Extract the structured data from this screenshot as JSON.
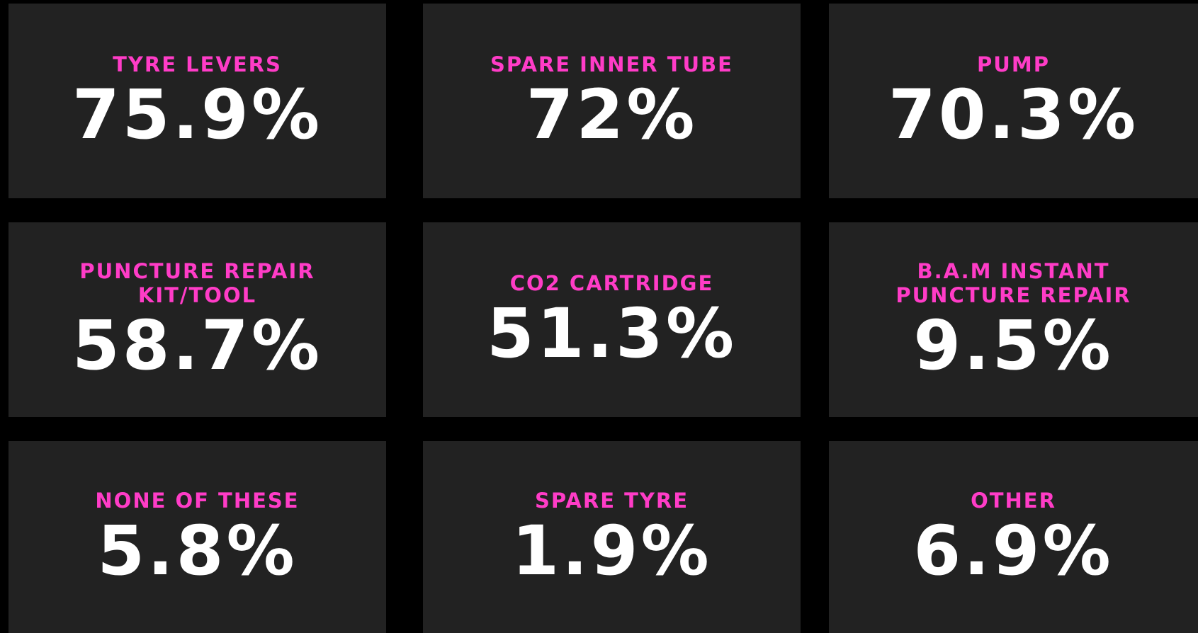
{
  "cards": [
    {
      "label": "TYRE LEVERS",
      "value": "75.9%"
    },
    {
      "label": "SPARE INNER TUBE",
      "value": "72%"
    },
    {
      "label": "PUMP",
      "value": "70.3%"
    },
    {
      "label": "PUNCTURE REPAIR KIT/TOOL",
      "value": "58.7%"
    },
    {
      "label": "CO2 CARTRIDGE",
      "value": "51.3%"
    },
    {
      "label": "B.A.M INSTANT PUNCTURE REPAIR",
      "value": "9.5%"
    },
    {
      "label": "NONE OF THESE",
      "value": "5.8%"
    },
    {
      "label": "SPARE TYRE",
      "value": "1.9%"
    },
    {
      "label": "OTHER",
      "value": "6.9%"
    }
  ]
}
